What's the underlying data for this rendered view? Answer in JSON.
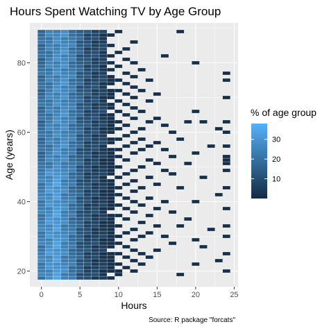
{
  "chart_data": {
    "type": "heatmap",
    "title": "Hours Spent Watching TV by Age Group",
    "xlabel": "Hours",
    "ylabel": "Age (years)",
    "caption": "Source: R package \"forcats\"",
    "xlim": [
      -1.5,
      25.5
    ],
    "ylim": [
      15.5,
      91.5
    ],
    "x_ticks": [
      0,
      5,
      10,
      15,
      20,
      25
    ],
    "y_ticks": [
      20,
      40,
      60,
      80
    ],
    "legend": {
      "title": "% of age group",
      "min": 0,
      "max": 38,
      "ticks": [
        10,
        20,
        30
      ],
      "low_color": "#132B43",
      "high_color": "#56B1F7",
      "position": "right"
    },
    "grid": true,
    "panel_background": "#EBEBEB",
    "age_range": [
      18,
      89
    ],
    "hours_range": [
      0,
      24
    ],
    "profile_hours_pct": [
      20,
      25,
      28,
      25,
      20,
      13,
      8,
      6,
      4
    ],
    "sparse_cells": [
      [
        9,
        18
      ],
      [
        9,
        20
      ],
      [
        9,
        21
      ],
      [
        9,
        22
      ],
      [
        9,
        23
      ],
      [
        9,
        24
      ],
      [
        9,
        25
      ],
      [
        9,
        27
      ],
      [
        9,
        28
      ],
      [
        9,
        29
      ],
      [
        9,
        30
      ],
      [
        9,
        31
      ],
      [
        9,
        32
      ],
      [
        9,
        33
      ],
      [
        9,
        34
      ],
      [
        9,
        35
      ],
      [
        9,
        36
      ],
      [
        9,
        38
      ],
      [
        9,
        39
      ],
      [
        9,
        40
      ],
      [
        9,
        41
      ],
      [
        9,
        42
      ],
      [
        9,
        43
      ],
      [
        9,
        44
      ],
      [
        9,
        45
      ],
      [
        9,
        46
      ],
      [
        9,
        48
      ],
      [
        9,
        49
      ],
      [
        9,
        50
      ],
      [
        9,
        51
      ],
      [
        9,
        52
      ],
      [
        9,
        53
      ],
      [
        9,
        54
      ],
      [
        9,
        55
      ],
      [
        9,
        57
      ],
      [
        9,
        58
      ],
      [
        9,
        60
      ],
      [
        9,
        61
      ],
      [
        9,
        62
      ],
      [
        9,
        63
      ],
      [
        9,
        64
      ],
      [
        9,
        65
      ],
      [
        9,
        67
      ],
      [
        9,
        68
      ],
      [
        9,
        70
      ],
      [
        9,
        71
      ],
      [
        9,
        72
      ],
      [
        9,
        74
      ],
      [
        9,
        75
      ],
      [
        9,
        76
      ],
      [
        9,
        78
      ],
      [
        9,
        80
      ],
      [
        9,
        82
      ],
      [
        9,
        85
      ],
      [
        9,
        88
      ],
      [
        10,
        19
      ],
      [
        10,
        20
      ],
      [
        10,
        22
      ],
      [
        10,
        25
      ],
      [
        10,
        28
      ],
      [
        10,
        30
      ],
      [
        10,
        33
      ],
      [
        10,
        36
      ],
      [
        10,
        39
      ],
      [
        10,
        42
      ],
      [
        10,
        44
      ],
      [
        10,
        47
      ],
      [
        10,
        50
      ],
      [
        10,
        53
      ],
      [
        10,
        55
      ],
      [
        10,
        58
      ],
      [
        10,
        61
      ],
      [
        10,
        63
      ],
      [
        10,
        66
      ],
      [
        10,
        69
      ],
      [
        10,
        72
      ],
      [
        10,
        75
      ],
      [
        10,
        79
      ],
      [
        10,
        83
      ],
      [
        10,
        89
      ],
      [
        11,
        21
      ],
      [
        11,
        24
      ],
      [
        11,
        27
      ],
      [
        11,
        31
      ],
      [
        11,
        35
      ],
      [
        11,
        38
      ],
      [
        11,
        41
      ],
      [
        11,
        45
      ],
      [
        11,
        48
      ],
      [
        11,
        52
      ],
      [
        11,
        56
      ],
      [
        11,
        59
      ],
      [
        11,
        62
      ],
      [
        11,
        65
      ],
      [
        11,
        68
      ],
      [
        11,
        71
      ],
      [
        11,
        74
      ],
      [
        11,
        77
      ],
      [
        11,
        81
      ],
      [
        11,
        84
      ],
      [
        12,
        20
      ],
      [
        12,
        23
      ],
      [
        12,
        26
      ],
      [
        12,
        29
      ],
      [
        12,
        32
      ],
      [
        12,
        37
      ],
      [
        12,
        40
      ],
      [
        12,
        43
      ],
      [
        12,
        46
      ],
      [
        12,
        49
      ],
      [
        12,
        54
      ],
      [
        12,
        57
      ],
      [
        12,
        60
      ],
      [
        12,
        64
      ],
      [
        12,
        67
      ],
      [
        12,
        70
      ],
      [
        12,
        73
      ],
      [
        12,
        76
      ],
      [
        12,
        80
      ],
      [
        12,
        86
      ],
      [
        13,
        22
      ],
      [
        13,
        25
      ],
      [
        13,
        30
      ],
      [
        13,
        34
      ],
      [
        13,
        39
      ],
      [
        13,
        44
      ],
      [
        13,
        50
      ],
      [
        13,
        55
      ],
      [
        13,
        58
      ],
      [
        13,
        61
      ],
      [
        13,
        66
      ],
      [
        13,
        72
      ],
      [
        13,
        78
      ],
      [
        14,
        24
      ],
      [
        14,
        31
      ],
      [
        14,
        36
      ],
      [
        14,
        41
      ],
      [
        14,
        47
      ],
      [
        14,
        52
      ],
      [
        14,
        56
      ],
      [
        14,
        63
      ],
      [
        14,
        69
      ],
      [
        14,
        75
      ],
      [
        15,
        26
      ],
      [
        15,
        33
      ],
      [
        15,
        38
      ],
      [
        15,
        45
      ],
      [
        15,
        51
      ],
      [
        15,
        57
      ],
      [
        15,
        64
      ],
      [
        15,
        71
      ],
      [
        16,
        30
      ],
      [
        16,
        40
      ],
      [
        16,
        49
      ],
      [
        16,
        55
      ],
      [
        16,
        62
      ],
      [
        16,
        82
      ],
      [
        17,
        28
      ],
      [
        17,
        37
      ],
      [
        17,
        48
      ],
      [
        17,
        53
      ],
      [
        17,
        60
      ],
      [
        18,
        19
      ],
      [
        18,
        33
      ],
      [
        18,
        44
      ],
      [
        18,
        58
      ],
      [
        18,
        89
      ],
      [
        19,
        35
      ],
      [
        19,
        51
      ],
      [
        19,
        63
      ],
      [
        20,
        22
      ],
      [
        20,
        29
      ],
      [
        20,
        40
      ],
      [
        20,
        54
      ],
      [
        20,
        66
      ],
      [
        20,
        80
      ],
      [
        21,
        27
      ],
      [
        21,
        47
      ],
      [
        21,
        63
      ],
      [
        22,
        32
      ],
      [
        22,
        56
      ],
      [
        23,
        23
      ],
      [
        23,
        42
      ],
      [
        23,
        61
      ],
      [
        24,
        20
      ],
      [
        24,
        25
      ],
      [
        24,
        30
      ],
      [
        24,
        33
      ],
      [
        24,
        38
      ],
      [
        24,
        44
      ],
      [
        24,
        49
      ],
      [
        24,
        51
      ],
      [
        24,
        52
      ],
      [
        24,
        53
      ],
      [
        24,
        56
      ],
      [
        24,
        60
      ],
      [
        24,
        63
      ],
      [
        24,
        70
      ],
      [
        24,
        75
      ],
      [
        24,
        77
      ]
    ]
  }
}
